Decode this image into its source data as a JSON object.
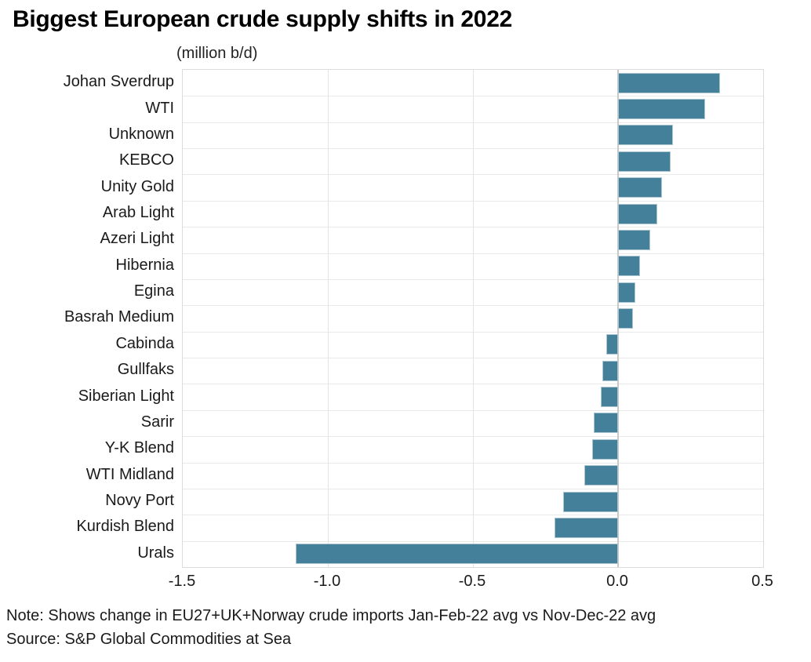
{
  "title": "Biggest European crude supply shifts in 2022",
  "subtitle": "(million b/d)",
  "note": "Note: Shows change in EU27+UK+Norway crude imports Jan-Feb-22 avg vs Nov-Dec-22 avg",
  "source": "Source: S&P Global Commodities at Sea",
  "chart_data": {
    "type": "bar",
    "orientation": "horizontal",
    "title": "Biggest European crude supply shifts in 2022",
    "xlabel": "(million b/d)",
    "ylabel": "",
    "categories": [
      "Johan Sverdrup",
      "WTI",
      "Unknown",
      "KEBCO",
      "Unity Gold",
      "Arab Light",
      "Azeri Light",
      "Hibernia",
      "Egina",
      "Basrah Medium",
      "Cabinda",
      "Gullfaks",
      "Siberian Light",
      "Sarir",
      "Y-K Blend",
      "WTI Midland",
      "Novy Port",
      "Kurdish Blend",
      "Urals"
    ],
    "values": [
      0.35,
      0.3,
      0.19,
      0.18,
      0.15,
      0.135,
      0.11,
      0.075,
      0.06,
      0.05,
      -0.04,
      -0.055,
      -0.06,
      -0.085,
      -0.09,
      -0.115,
      -0.19,
      -0.22,
      -1.11
    ],
    "xlim": [
      -1.5,
      0.5
    ],
    "x_ticks": [
      -1.5,
      -1.0,
      -0.5,
      0.0,
      0.5
    ],
    "x_tick_labels": [
      "-1.5",
      "-1.0",
      "-0.5",
      "0.0",
      "0.5"
    ],
    "grid": true,
    "legend": false,
    "bar_color": "#45809a",
    "grid_color": "#e4e4e4",
    "zero_line_color": "#c9c9c9",
    "plot_border_color": "#dcdcdc"
  }
}
